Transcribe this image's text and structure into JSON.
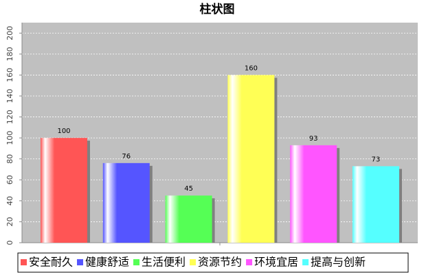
{
  "chart_data": {
    "type": "bar",
    "title": "柱状图",
    "categories": [
      null
    ],
    "series": [
      {
        "name": "安全耐久",
        "color": "#ff5555",
        "values": [
          100
        ]
      },
      {
        "name": "健康舒适",
        "color": "#5555ff",
        "values": [
          76
        ]
      },
      {
        "name": "生活便利",
        "color": "#55ff55",
        "values": [
          45
        ]
      },
      {
        "name": "资源节约",
        "color": "#ffff55",
        "values": [
          160
        ]
      },
      {
        "name": "环境宜居",
        "color": "#ff55ff",
        "values": [
          93
        ]
      },
      {
        "name": "提高与创新",
        "color": "#55ffff",
        "values": [
          73
        ]
      }
    ],
    "ylim": [
      0,
      210
    ],
    "yticks": [
      0,
      20,
      40,
      60,
      80,
      100,
      120,
      140,
      160,
      180,
      200
    ],
    "grid": true,
    "legend": "bottom"
  }
}
